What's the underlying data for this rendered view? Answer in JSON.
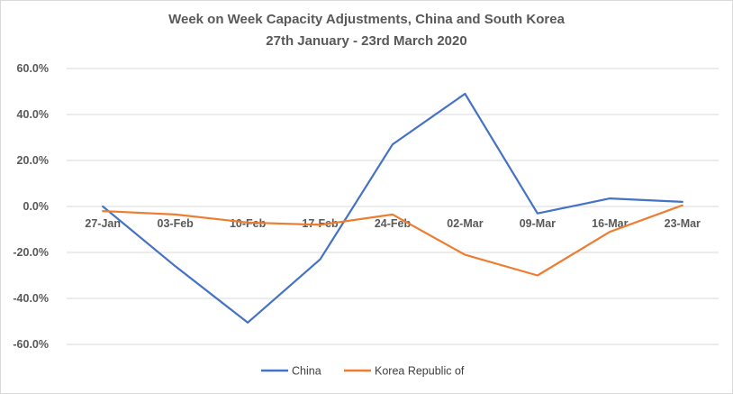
{
  "chart_data": {
    "type": "line",
    "title": "Week on Week Capacity Adjustments, China and South Korea",
    "subtitle": "27th January - 23rd March 2020",
    "categories": [
      "27-Jan",
      "03-Feb",
      "10-Feb",
      "17-Feb",
      "24-Feb",
      "02-Mar",
      "09-Mar",
      "16-Mar",
      "23-Mar"
    ],
    "series": [
      {
        "name": "China",
        "color": "#4472C4",
        "values": [
          0.0,
          -26.0,
          -50.5,
          -23.0,
          27.0,
          49.0,
          -3.0,
          3.5,
          2.0
        ]
      },
      {
        "name": "Korea Republic of",
        "color": "#ED7D31",
        "values": [
          -2.0,
          -3.5,
          -7.0,
          -8.0,
          -3.5,
          -21.0,
          -30.0,
          -11.0,
          0.5
        ]
      }
    ],
    "yticks": [
      "60.0%",
      "40.0%",
      "20.0%",
      "0.0%",
      "-20.0%",
      "-40.0%",
      "-60.0%"
    ],
    "ylim": [
      -60,
      60
    ],
    "grid": true,
    "legend_position": "bottom"
  }
}
